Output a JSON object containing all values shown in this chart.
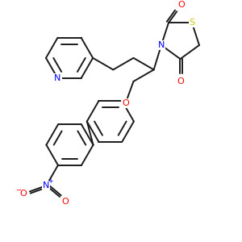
{
  "bg_color": "#ffffff",
  "line_color": "#1a1a1a",
  "bond_lw": 1.4,
  "atom_colors": {
    "N": "#0000ff",
    "O": "#ff0000",
    "S": "#cccc00",
    "C": "#1a1a1a"
  }
}
